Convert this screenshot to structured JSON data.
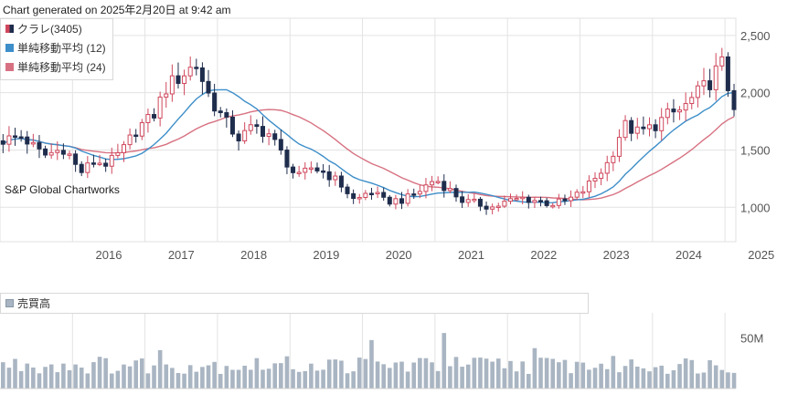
{
  "header": {
    "generated_text": "Chart generated on 2025年2月20日 at 9:42 am"
  },
  "watermark": "S&P Global Chartworks",
  "legend": {
    "price": [
      {
        "label": "クラレ(3405)",
        "color": "#d0475c",
        "kind": "candle"
      },
      {
        "label": "単純移動平均 (12)",
        "color": "#3d8ec9",
        "kind": "line"
      },
      {
        "label": "単純移動平均 (24)",
        "color": "#d77181",
        "kind": "line"
      }
    ],
    "volume": {
      "label": "売買高",
      "color": "#a9b5c2"
    }
  },
  "colors": {
    "up": "#d0475c",
    "down": "#1f2d4d",
    "sma12": "#3d8ec9",
    "sma24": "#d77181",
    "volume": "#a9b5c2",
    "grid": "#e3e3e3"
  },
  "chart_data": [
    {
      "type": "candlestick",
      "x_ticks": [
        "2016",
        "2017",
        "2018",
        "2019",
        "2020",
        "2021",
        "2022",
        "2023",
        "2024",
        "2025"
      ],
      "y_ticks": [
        1000,
        1500,
        2000,
        2500
      ],
      "y_tick_labels": [
        "1,000",
        "1,500",
        "2,000",
        "2,500"
      ],
      "ylim": [
        700,
        2650
      ],
      "x_start": 2015.0,
      "x_end": 2025.15,
      "anchors": [
        [
          2015.0,
          1580
        ],
        [
          2015.3,
          1620
        ],
        [
          2015.6,
          1450
        ],
        [
          2015.9,
          1520
        ],
        [
          2016.1,
          1300
        ],
        [
          2016.3,
          1400
        ],
        [
          2016.5,
          1380
        ],
        [
          2016.7,
          1500
        ],
        [
          2016.9,
          1700
        ],
        [
          2017.1,
          1780
        ],
        [
          2017.3,
          2050
        ],
        [
          2017.5,
          2150
        ],
        [
          2017.7,
          2250
        ],
        [
          2017.9,
          1950
        ],
        [
          2018.1,
          1750
        ],
        [
          2018.3,
          1600
        ],
        [
          2018.5,
          1700
        ],
        [
          2018.7,
          1650
        ],
        [
          2018.9,
          1450
        ],
        [
          2019.1,
          1250
        ],
        [
          2019.3,
          1350
        ],
        [
          2019.5,
          1300
        ],
        [
          2019.7,
          1200
        ],
        [
          2019.9,
          1050
        ],
        [
          2020.1,
          1150
        ],
        [
          2020.3,
          1050
        ],
        [
          2020.6,
          1070
        ],
        [
          2020.8,
          1150
        ],
        [
          2021.0,
          1250
        ],
        [
          2021.2,
          1150
        ],
        [
          2021.4,
          1050
        ],
        [
          2021.6,
          1030
        ],
        [
          2021.8,
          1000
        ],
        [
          2022.0,
          1050
        ],
        [
          2022.2,
          1080
        ],
        [
          2022.4,
          1060
        ],
        [
          2022.6,
          1030
        ],
        [
          2022.8,
          1050
        ],
        [
          2023.0,
          1120
        ],
        [
          2023.2,
          1250
        ],
        [
          2023.4,
          1400
        ],
        [
          2023.6,
          1720
        ],
        [
          2023.8,
          1650
        ],
        [
          2024.0,
          1700
        ],
        [
          2024.2,
          1800
        ],
        [
          2024.4,
          1850
        ],
        [
          2024.6,
          1980
        ],
        [
          2024.8,
          2100
        ],
        [
          2024.95,
          2270
        ],
        [
          2025.1,
          1900
        ]
      ],
      "series": [
        {
          "name": "クラレ(3405)"
        },
        {
          "name": "単純移動平均 (12)"
        },
        {
          "name": "単純移動平均 (24)"
        }
      ]
    },
    {
      "type": "bar",
      "y_ticks": [
        50
      ],
      "y_tick_labels": [
        "50M"
      ],
      "ylim": [
        0,
        75
      ],
      "baseline_level": 26,
      "spike_years": [
        2017.2,
        2020.1,
        2021.1,
        2022.4
      ],
      "spike_levels": [
        38,
        48,
        55,
        40
      ],
      "series": [
        {
          "name": "売買高"
        }
      ]
    }
  ]
}
